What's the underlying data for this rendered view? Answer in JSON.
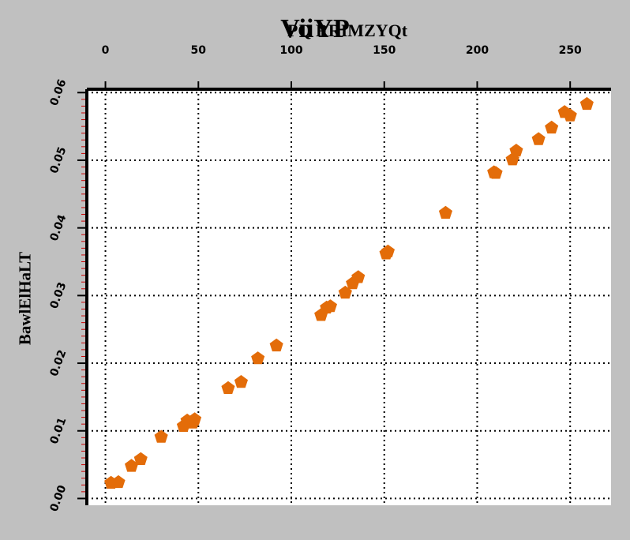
{
  "chart_data": {
    "type": "scatter",
    "title": "ViiYP",
    "xlabel": "PQ RRIMZYQt",
    "ylabel": "BawlElHaLT",
    "xlim": [
      -10,
      272
    ],
    "ylim": [
      -0.001,
      0.0605
    ],
    "x_ticks": [
      0,
      50,
      100,
      150,
      200,
      250
    ],
    "x_tick_labels": [
      "0",
      "50",
      "100",
      "150",
      "200",
      "250"
    ],
    "y_ticks": [
      0.0,
      0.01,
      0.02,
      0.03,
      0.04,
      0.05,
      0.06
    ],
    "y_tick_labels": [
      "0.00",
      "0.01",
      "0.02",
      "0.03",
      "0.04",
      "0.05",
      "0.06"
    ],
    "x_axis_position": "top",
    "grid": true,
    "marker": "pentagon",
    "series": [
      {
        "color": "#e36c09",
        "points": [
          [
            3,
            0.0023
          ],
          [
            7,
            0.0024
          ],
          [
            14,
            0.0048
          ],
          [
            19,
            0.0058
          ],
          [
            30,
            0.0091
          ],
          [
            42,
            0.0107
          ],
          [
            44,
            0.0115
          ],
          [
            47,
            0.0112
          ],
          [
            48,
            0.0117
          ],
          [
            66,
            0.0163
          ],
          [
            73,
            0.0172
          ],
          [
            82,
            0.0207
          ],
          [
            92,
            0.0226
          ],
          [
            116,
            0.0271
          ],
          [
            119,
            0.0282
          ],
          [
            121,
            0.0284
          ],
          [
            129,
            0.0304
          ],
          [
            133,
            0.0318
          ],
          [
            136,
            0.0327
          ],
          [
            151,
            0.0362
          ],
          [
            152,
            0.0365
          ],
          [
            183,
            0.0422
          ],
          [
            209,
            0.0482
          ],
          [
            210,
            0.0481
          ],
          [
            219,
            0.0501
          ],
          [
            221,
            0.0514
          ],
          [
            233,
            0.0531
          ],
          [
            240,
            0.0548
          ],
          [
            247,
            0.0571
          ],
          [
            250,
            0.0566
          ],
          [
            259,
            0.0583
          ]
        ]
      }
    ]
  }
}
